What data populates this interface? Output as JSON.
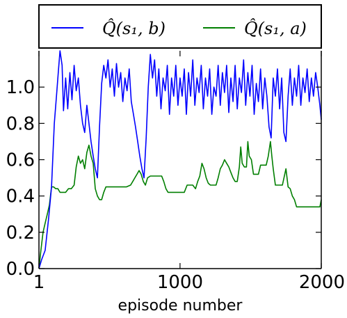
{
  "chart_data": {
    "type": "line",
    "title": "",
    "xlabel": "episode number",
    "ylabel": "",
    "xlim": [
      1,
      2000
    ],
    "ylim": [
      0.0,
      1.2
    ],
    "x_ticks": [
      1,
      1000,
      2000
    ],
    "y_ticks": [
      0.0,
      0.2,
      0.4,
      0.6,
      0.8,
      1.0
    ],
    "x_tick_labels": [
      "1",
      "1000",
      "2000"
    ],
    "y_tick_labels": [
      "0.0",
      "0.2",
      "0.4",
      "0.6",
      "0.8",
      "1.0"
    ],
    "legend_position": "top",
    "grid": false,
    "series": [
      {
        "name": "Q̂(s₁, b)",
        "color": "#0000ff",
        "points": [
          [
            1,
            0.0
          ],
          [
            20,
            0.05
          ],
          [
            45,
            0.1
          ],
          [
            70,
            0.28
          ],
          [
            90,
            0.45
          ],
          [
            110,
            0.8
          ],
          [
            125,
            0.95
          ],
          [
            140,
            1.1
          ],
          [
            150,
            1.2
          ],
          [
            165,
            1.12
          ],
          [
            175,
            0.87
          ],
          [
            190,
            1.05
          ],
          [
            205,
            0.88
          ],
          [
            220,
            1.08
          ],
          [
            235,
            0.93
          ],
          [
            250,
            1.12
          ],
          [
            265,
            0.98
          ],
          [
            280,
            1.05
          ],
          [
            295,
            0.9
          ],
          [
            310,
            0.8
          ],
          [
            325,
            0.75
          ],
          [
            340,
            0.9
          ],
          [
            355,
            0.8
          ],
          [
            370,
            0.7
          ],
          [
            385,
            0.62
          ],
          [
            400,
            0.55
          ],
          [
            415,
            0.5
          ],
          [
            430,
            0.78
          ],
          [
            445,
            1.02
          ],
          [
            460,
            1.12
          ],
          [
            475,
            1.05
          ],
          [
            490,
            1.15
          ],
          [
            505,
            1.0
          ],
          [
            520,
            1.1
          ],
          [
            535,
            0.95
          ],
          [
            550,
            1.13
          ],
          [
            565,
            1.0
          ],
          [
            580,
            1.08
          ],
          [
            595,
            0.92
          ],
          [
            610,
            1.05
          ],
          [
            625,
            0.98
          ],
          [
            640,
            1.1
          ],
          [
            655,
            0.92
          ],
          [
            670,
            0.85
          ],
          [
            685,
            0.78
          ],
          [
            700,
            0.7
          ],
          [
            715,
            0.62
          ],
          [
            730,
            0.55
          ],
          [
            745,
            0.5
          ],
          [
            760,
            0.72
          ],
          [
            775,
            1.0
          ],
          [
            790,
            1.18
          ],
          [
            805,
            1.05
          ],
          [
            820,
            1.15
          ],
          [
            835,
            0.95
          ],
          [
            850,
            1.1
          ],
          [
            865,
            0.88
          ],
          [
            880,
            1.05
          ],
          [
            895,
            0.98
          ],
          [
            910,
            1.12
          ],
          [
            925,
            0.85
          ],
          [
            940,
            1.05
          ],
          [
            955,
            0.95
          ],
          [
            970,
            1.12
          ],
          [
            985,
            0.9
          ],
          [
            1000,
            1.05
          ],
          [
            1015,
            0.95
          ],
          [
            1030,
            1.1
          ],
          [
            1045,
            0.85
          ],
          [
            1060,
            1.08
          ],
          [
            1075,
            0.95
          ],
          [
            1090,
            1.15
          ],
          [
            1105,
            0.9
          ],
          [
            1120,
            1.05
          ],
          [
            1135,
            0.97
          ],
          [
            1150,
            1.12
          ],
          [
            1165,
            0.88
          ],
          [
            1180,
            1.05
          ],
          [
            1195,
            0.95
          ],
          [
            1210,
            1.1
          ],
          [
            1225,
            0.85
          ],
          [
            1240,
            1.0
          ],
          [
            1255,
            0.95
          ],
          [
            1270,
            1.12
          ],
          [
            1285,
            0.9
          ],
          [
            1300,
            1.08
          ],
          [
            1315,
            0.97
          ],
          [
            1330,
            1.12
          ],
          [
            1345,
            0.86
          ],
          [
            1360,
            1.05
          ],
          [
            1375,
            0.92
          ],
          [
            1390,
            1.12
          ],
          [
            1405,
            0.88
          ],
          [
            1420,
            1.05
          ],
          [
            1435,
            0.97
          ],
          [
            1450,
            1.15
          ],
          [
            1465,
            0.9
          ],
          [
            1480,
            1.08
          ],
          [
            1495,
            0.95
          ],
          [
            1510,
            1.12
          ],
          [
            1525,
            0.85
          ],
          [
            1540,
            1.02
          ],
          [
            1555,
            0.92
          ],
          [
            1570,
            1.1
          ],
          [
            1585,
            0.88
          ],
          [
            1600,
            1.05
          ],
          [
            1615,
            0.95
          ],
          [
            1630,
            0.78
          ],
          [
            1645,
            0.72
          ],
          [
            1660,
            1.05
          ],
          [
            1675,
            0.95
          ],
          [
            1690,
            1.1
          ],
          [
            1705,
            0.88
          ],
          [
            1720,
            1.05
          ],
          [
            1735,
            0.75
          ],
          [
            1750,
            0.7
          ],
          [
            1765,
            0.95
          ],
          [
            1780,
            1.1
          ],
          [
            1795,
            0.9
          ],
          [
            1810,
            1.05
          ],
          [
            1825,
            0.95
          ],
          [
            1840,
            1.12
          ],
          [
            1855,
            0.9
          ],
          [
            1870,
            1.05
          ],
          [
            1885,
            0.97
          ],
          [
            1900,
            1.1
          ],
          [
            1915,
            0.92
          ],
          [
            1930,
            1.05
          ],
          [
            1945,
            0.95
          ],
          [
            1960,
            1.08
          ],
          [
            1975,
            1.0
          ],
          [
            1990,
            0.9
          ],
          [
            2000,
            0.82
          ]
        ]
      },
      {
        "name": "Q̂(s₁, a)",
        "color": "#007f00",
        "points": [
          [
            1,
            0.0
          ],
          [
            15,
            0.1
          ],
          [
            30,
            0.2
          ],
          [
            45,
            0.25
          ],
          [
            60,
            0.3
          ],
          [
            75,
            0.35
          ],
          [
            90,
            0.45
          ],
          [
            105,
            0.45
          ],
          [
            120,
            0.44
          ],
          [
            135,
            0.44
          ],
          [
            150,
            0.42
          ],
          [
            170,
            0.42
          ],
          [
            190,
            0.42
          ],
          [
            210,
            0.44
          ],
          [
            230,
            0.44
          ],
          [
            250,
            0.46
          ],
          [
            265,
            0.56
          ],
          [
            280,
            0.62
          ],
          [
            295,
            0.58
          ],
          [
            310,
            0.6
          ],
          [
            325,
            0.55
          ],
          [
            340,
            0.64
          ],
          [
            355,
            0.68
          ],
          [
            370,
            0.62
          ],
          [
            385,
            0.58
          ],
          [
            400,
            0.44
          ],
          [
            415,
            0.4
          ],
          [
            430,
            0.38
          ],
          [
            445,
            0.38
          ],
          [
            460,
            0.42
          ],
          [
            475,
            0.45
          ],
          [
            500,
            0.45
          ],
          [
            530,
            0.45
          ],
          [
            560,
            0.45
          ],
          [
            590,
            0.45
          ],
          [
            620,
            0.45
          ],
          [
            650,
            0.46
          ],
          [
            665,
            0.48
          ],
          [
            680,
            0.5
          ],
          [
            695,
            0.52
          ],
          [
            710,
            0.54
          ],
          [
            725,
            0.52
          ],
          [
            740,
            0.48
          ],
          [
            755,
            0.46
          ],
          [
            770,
            0.5
          ],
          [
            790,
            0.51
          ],
          [
            810,
            0.51
          ],
          [
            830,
            0.51
          ],
          [
            850,
            0.51
          ],
          [
            870,
            0.51
          ],
          [
            885,
            0.48
          ],
          [
            900,
            0.44
          ],
          [
            915,
            0.42
          ],
          [
            930,
            0.42
          ],
          [
            950,
            0.42
          ],
          [
            970,
            0.42
          ],
          [
            990,
            0.42
          ],
          [
            1010,
            0.42
          ],
          [
            1030,
            0.42
          ],
          [
            1050,
            0.46
          ],
          [
            1070,
            0.46
          ],
          [
            1090,
            0.46
          ],
          [
            1110,
            0.44
          ],
          [
            1125,
            0.48
          ],
          [
            1140,
            0.51
          ],
          [
            1155,
            0.58
          ],
          [
            1170,
            0.55
          ],
          [
            1185,
            0.5
          ],
          [
            1200,
            0.47
          ],
          [
            1215,
            0.46
          ],
          [
            1235,
            0.46
          ],
          [
            1255,
            0.46
          ],
          [
            1270,
            0.5
          ],
          [
            1285,
            0.55
          ],
          [
            1300,
            0.57
          ],
          [
            1315,
            0.6
          ],
          [
            1330,
            0.58
          ],
          [
            1345,
            0.56
          ],
          [
            1360,
            0.53
          ],
          [
            1375,
            0.5
          ],
          [
            1390,
            0.48
          ],
          [
            1405,
            0.48
          ],
          [
            1420,
            0.56
          ],
          [
            1430,
            0.67
          ],
          [
            1440,
            0.58
          ],
          [
            1455,
            0.56
          ],
          [
            1470,
            0.56
          ],
          [
            1480,
            0.7
          ],
          [
            1490,
            0.62
          ],
          [
            1505,
            0.6
          ],
          [
            1520,
            0.52
          ],
          [
            1540,
            0.52
          ],
          [
            1555,
            0.52
          ],
          [
            1570,
            0.57
          ],
          [
            1590,
            0.57
          ],
          [
            1610,
            0.57
          ],
          [
            1625,
            0.62
          ],
          [
            1640,
            0.7
          ],
          [
            1650,
            0.62
          ],
          [
            1660,
            0.55
          ],
          [
            1675,
            0.46
          ],
          [
            1700,
            0.46
          ],
          [
            1725,
            0.46
          ],
          [
            1750,
            0.55
          ],
          [
            1765,
            0.45
          ],
          [
            1780,
            0.44
          ],
          [
            1795,
            0.4
          ],
          [
            1810,
            0.38
          ],
          [
            1825,
            0.34
          ],
          [
            1850,
            0.34
          ],
          [
            1880,
            0.34
          ],
          [
            1910,
            0.34
          ],
          [
            1940,
            0.34
          ],
          [
            1970,
            0.34
          ],
          [
            1990,
            0.34
          ],
          [
            2000,
            0.38
          ]
        ]
      }
    ]
  }
}
